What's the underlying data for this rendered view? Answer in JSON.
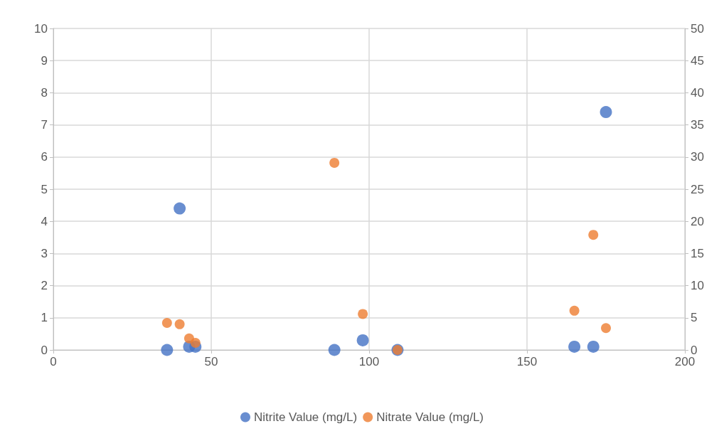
{
  "chart_data": {
    "type": "scatter",
    "series": [
      {
        "name": "Nitrite Value (mg/L)",
        "color": "#4472c4",
        "x": [
          36,
          40,
          43,
          45,
          89,
          98,
          109,
          165,
          171,
          175
        ],
        "values": [
          0,
          4.4,
          0.1,
          0.1,
          0,
          0.3,
          0,
          0.1,
          0.1,
          7.4
        ]
      },
      {
        "name": "Nitrate Value (mg/L)",
        "color": "#ed7d31",
        "axis": "y2",
        "x": [
          36,
          40,
          43,
          45,
          89,
          98,
          109,
          165,
          171,
          175
        ],
        "values": [
          4.2,
          4.0,
          1.8,
          1.1,
          29.1,
          5.6,
          0,
          6.1,
          17.9,
          3.4
        ]
      }
    ],
    "xlim": [
      0,
      200
    ],
    "xticks": [
      0,
      50,
      100,
      150,
      200
    ],
    "ylim": [
      0,
      10
    ],
    "yticks": [
      0,
      1,
      2,
      3,
      4,
      5,
      6,
      7,
      8,
      9,
      10
    ],
    "y2lim": [
      0,
      50
    ],
    "y2ticks": [
      0,
      5,
      10,
      15,
      20,
      25,
      30,
      35,
      40,
      45,
      50
    ],
    "grid": true,
    "legend": "bottom",
    "marker": "circle"
  }
}
